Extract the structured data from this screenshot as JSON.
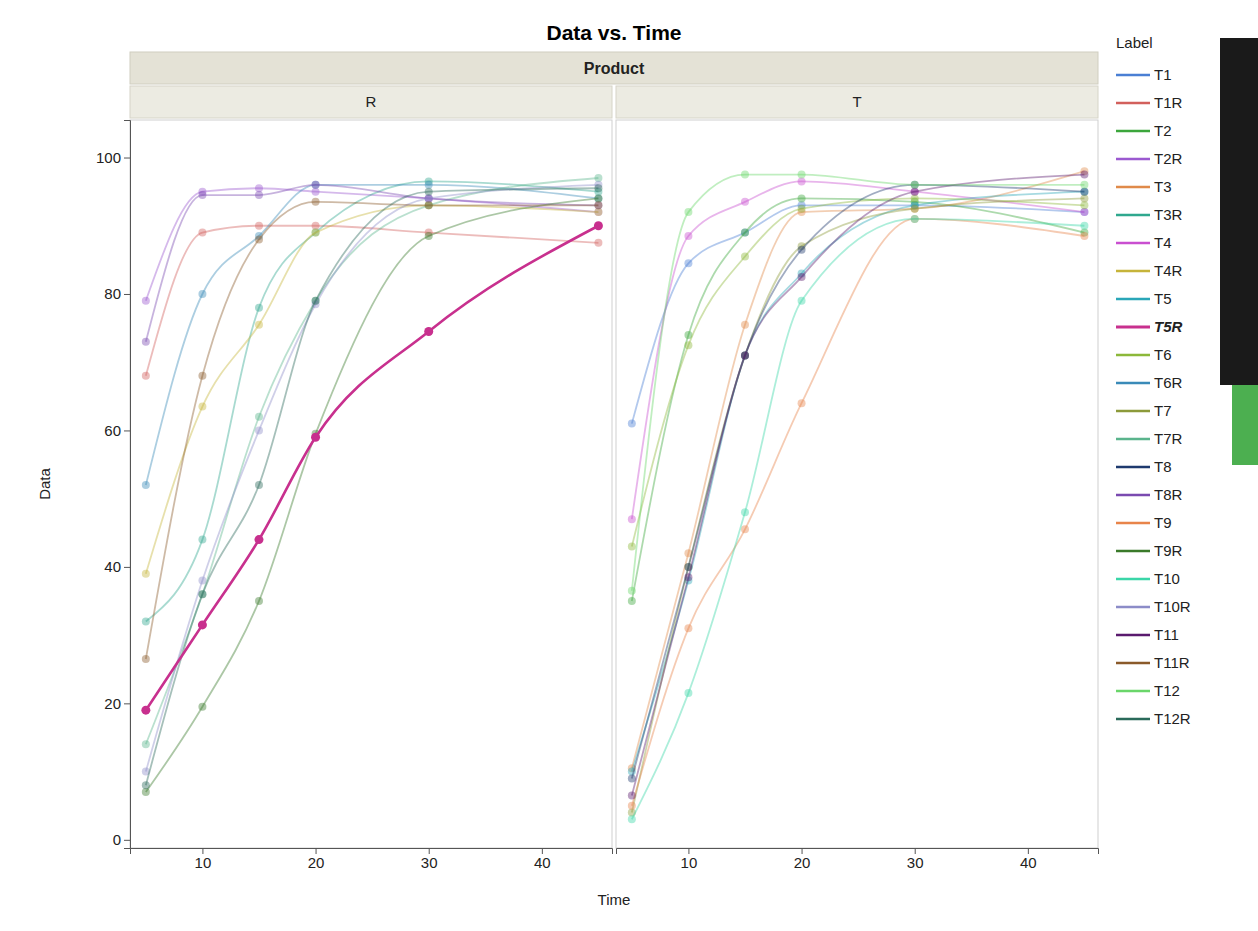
{
  "chart_data": {
    "type": "line",
    "title": "Data vs. Time",
    "facet_label": "Product",
    "panels": [
      "R",
      "T"
    ],
    "x_label": "Time",
    "y_label": "Data",
    "legend_title": "Label",
    "legend": "right",
    "marker": "circle",
    "x": [
      5,
      10,
      15,
      20,
      30,
      45
    ],
    "xlim": [
      3.6,
      46.2
    ],
    "xticks": [
      10,
      20,
      30,
      40
    ],
    "ylim": [
      -1.2,
      105.5
    ],
    "yticks": [
      0,
      20,
      40,
      60,
      80,
      100
    ],
    "series": [
      {
        "name": "T1",
        "panel": "T",
        "color": "#4a7fd4",
        "values": [
          61,
          84.5,
          89,
          93,
          93,
          92
        ]
      },
      {
        "name": "T1R",
        "panel": "R",
        "color": "#d2605c",
        "values": [
          68,
          89,
          90,
          90,
          89,
          87.5
        ]
      },
      {
        "name": "T2",
        "panel": "T",
        "color": "#3ca63c",
        "values": [
          35,
          74,
          89,
          94,
          93.5,
          89
        ]
      },
      {
        "name": "T2R",
        "panel": "R",
        "color": "#9b59d0",
        "values": [
          79,
          95,
          95.5,
          95,
          94,
          92
        ]
      },
      {
        "name": "T3",
        "panel": "T",
        "color": "#e08a4a",
        "values": [
          10.5,
          42,
          75.5,
          92,
          92.5,
          98
        ]
      },
      {
        "name": "T3R",
        "panel": "R",
        "color": "#2fa88e",
        "values": [
          32,
          44,
          78,
          89,
          96.5,
          95
        ]
      },
      {
        "name": "T4",
        "panel": "T",
        "color": "#c94fd0",
        "values": [
          47,
          88.5,
          93.5,
          96.5,
          95,
          92
        ]
      },
      {
        "name": "T4R",
        "panel": "R",
        "color": "#c6b43a",
        "values": [
          39,
          63.5,
          75.5,
          89,
          93,
          92
        ]
      },
      {
        "name": "T5",
        "panel": "T",
        "color": "#2aa6b8",
        "values": [
          10,
          38,
          71,
          83,
          93,
          95
        ]
      },
      {
        "name": "T5R",
        "panel": "R",
        "color": "#c8308e",
        "line_style": "bold",
        "values": [
          19,
          31.5,
          44,
          59,
          74.5,
          90
        ]
      },
      {
        "name": "T6",
        "panel": "T",
        "color": "#8cb83a",
        "values": [
          43,
          72.5,
          85.5,
          92.5,
          94,
          93
        ]
      },
      {
        "name": "T6R",
        "panel": "R",
        "color": "#3a8ab8",
        "values": [
          52,
          80,
          88.5,
          96,
          96,
          94
        ]
      },
      {
        "name": "T7",
        "panel": "T",
        "color": "#8c9a3a",
        "values": [
          4,
          40,
          71,
          87,
          92.5,
          94
        ]
      },
      {
        "name": "T7R",
        "panel": "R",
        "color": "#5ab48c",
        "values": [
          14,
          36,
          62,
          79,
          93,
          97
        ]
      },
      {
        "name": "T8",
        "panel": "T",
        "color": "#1e3a6e",
        "values": [
          9,
          40,
          71,
          86.5,
          96,
          95
        ]
      },
      {
        "name": "T8R",
        "panel": "R",
        "color": "#7a4ab0",
        "values": [
          73,
          94.5,
          94.5,
          96,
          94,
          93
        ]
      },
      {
        "name": "T9",
        "panel": "T",
        "color": "#e8844a",
        "values": [
          5,
          31,
          45.5,
          64,
          91,
          88.5
        ]
      },
      {
        "name": "T9R",
        "panel": "R",
        "color": "#3a7a2a",
        "values": [
          7,
          19.5,
          35,
          59.5,
          88.5,
          94
        ]
      },
      {
        "name": "T10",
        "panel": "T",
        "color": "#3ad6a8",
        "values": [
          3,
          21.5,
          48,
          79,
          91,
          90
        ]
      },
      {
        "name": "T10R",
        "panel": "R",
        "color": "#8c8cc8",
        "values": [
          10,
          38,
          60,
          78.5,
          94,
          96
        ]
      },
      {
        "name": "T11",
        "panel": "T",
        "color": "#5a1a6e",
        "values": [
          6.5,
          38.5,
          71,
          82.5,
          95,
          97.5
        ]
      },
      {
        "name": "T11R",
        "panel": "R",
        "color": "#8a5a2a",
        "values": [
          26.5,
          68,
          88,
          93.5,
          93,
          93
        ]
      },
      {
        "name": "T12",
        "panel": "T",
        "color": "#6ad66a",
        "values": [
          36.5,
          92,
          97.5,
          97.5,
          96,
          96
        ]
      },
      {
        "name": "T12R",
        "panel": "R",
        "color": "#2a6a5a",
        "values": [
          8,
          36,
          52,
          79,
          95,
          95.5
        ]
      }
    ]
  }
}
